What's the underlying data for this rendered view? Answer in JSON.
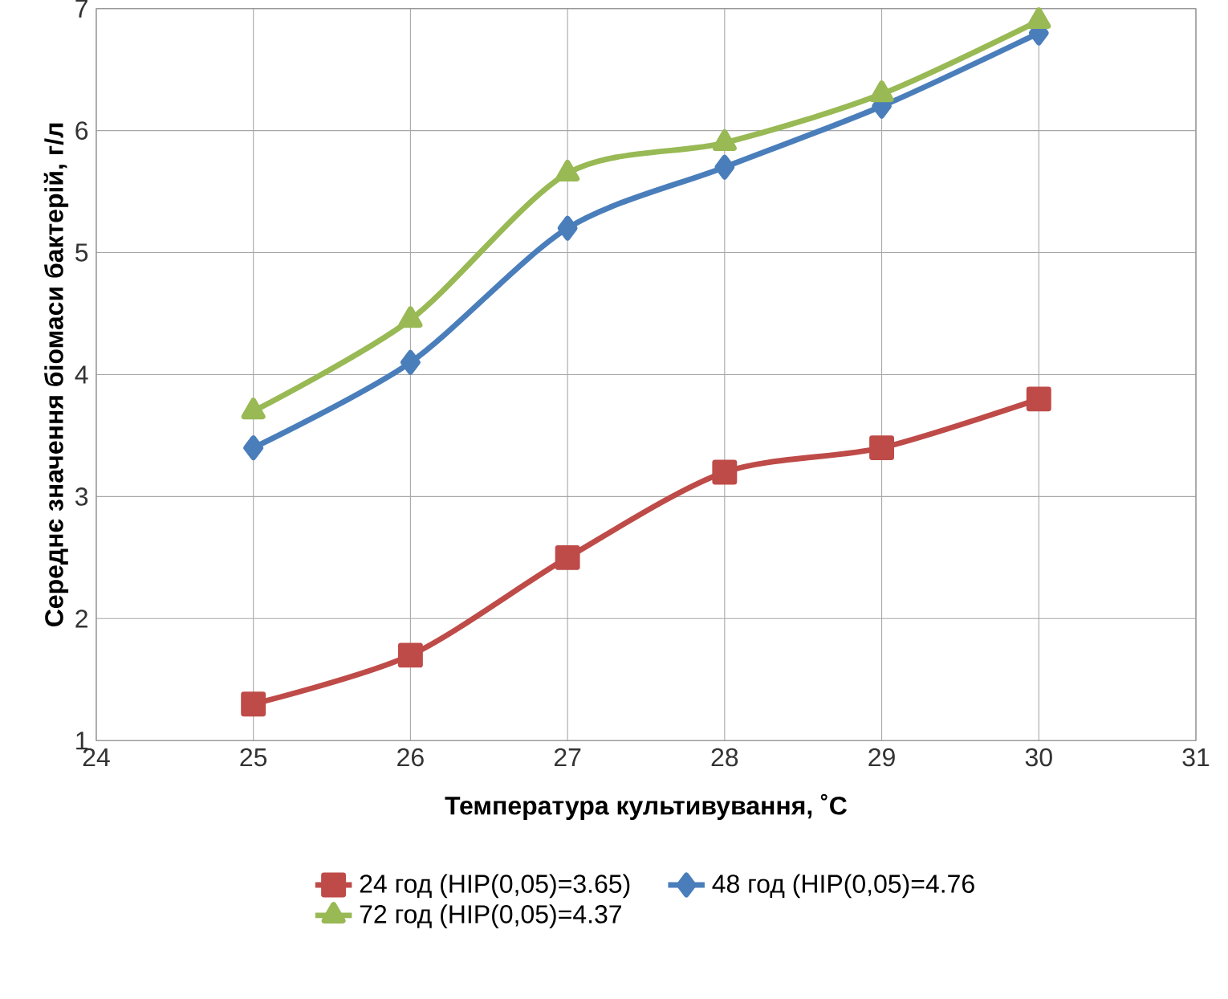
{
  "chart_data": {
    "type": "line",
    "xlabel": "Температура культивування, ˚С",
    "ylabel": "Середнє значення біомаси бактерій, г/л",
    "x": [
      25,
      26,
      27,
      28,
      29,
      30
    ],
    "series": [
      {
        "name": "24 год (НІР(0,05)=3.65)",
        "color": "#be4b48",
        "marker": "square",
        "values": [
          1.3,
          1.7,
          2.5,
          3.2,
          3.4,
          3.8
        ]
      },
      {
        "name": "48 год (НІР(0,05)=4.76",
        "color": "#4a7ebb",
        "marker": "diamond",
        "values": [
          3.4,
          4.1,
          5.2,
          5.7,
          6.2,
          6.8
        ]
      },
      {
        "name": "72 год (НІР(0,05)=4.37",
        "color": "#98b954",
        "marker": "triangle",
        "values": [
          3.7,
          4.45,
          5.65,
          5.9,
          6.3,
          6.9
        ]
      }
    ],
    "xlim": [
      24,
      31
    ],
    "xticks": [
      24,
      25,
      26,
      27,
      28,
      29,
      30,
      31
    ],
    "ylim": [
      1,
      7
    ],
    "yticks": [
      1,
      2,
      3,
      4,
      5,
      6,
      7
    ],
    "grid": true,
    "legend": "bottom",
    "line_style": "solid"
  }
}
